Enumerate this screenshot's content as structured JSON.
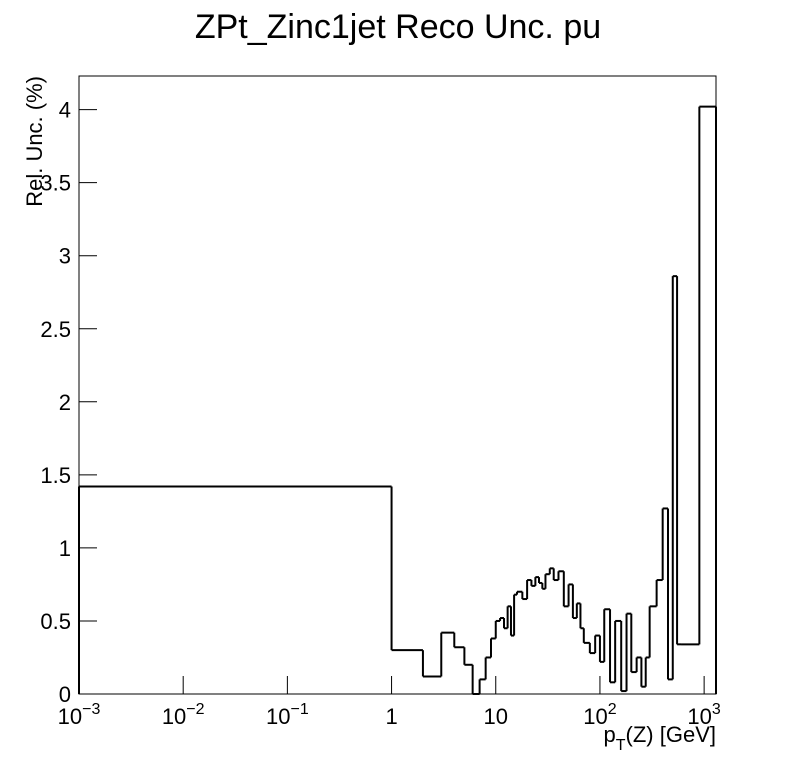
{
  "chart_data": {
    "type": "histogram",
    "title": "ZPt_Zinc1jet Reco Unc. pu",
    "xlabel": "p",
    "xlabel_subscript": "T",
    "xlabel_rest": "(Z) [GeV]",
    "ylabel": "Rel. Unc. (%)",
    "xscale": "log",
    "color": "#000000",
    "bins": [
      0.001,
      1,
      2,
      3,
      4,
      5,
      6,
      7,
      8,
      9,
      10,
      11,
      12,
      13,
      14,
      15,
      16,
      18,
      20,
      22,
      24,
      26,
      28,
      30,
      33,
      36,
      40,
      45,
      50,
      55,
      60,
      65,
      70,
      80,
      90,
      100,
      110,
      125,
      140,
      160,
      180,
      200,
      225,
      250,
      275,
      300,
      350,
      400,
      450,
      500,
      550,
      600,
      900,
      1300
    ],
    "values": [
      1.42,
      0.3,
      0.12,
      0.42,
      0.32,
      0.2,
      0,
      0.1,
      0.25,
      0.38,
      0.5,
      0.52,
      0.45,
      0.6,
      0.4,
      0.68,
      0.7,
      0.65,
      0.78,
      0.74,
      0.8,
      0.76,
      0.72,
      0.82,
      0.86,
      0.78,
      0.84,
      0.6,
      0.75,
      0.52,
      0.62,
      0.45,
      0.35,
      0.28,
      0.4,
      0.22,
      0.58,
      0.08,
      0.5,
      0.02,
      0.55,
      0.15,
      0.25,
      0.05,
      0.25,
      0.6,
      0.78,
      1.27,
      0.1,
      2.86,
      0.34,
      0.34,
      4.02
    ],
    "xlim": [
      0.001,
      1300
    ],
    "ylim": [
      0,
      4.23
    ],
    "xticks": [
      {
        "value": 0.001,
        "label": "10",
        "exponent": "−3"
      },
      {
        "value": 0.01,
        "label": "10",
        "exponent": "−2"
      },
      {
        "value": 0.1,
        "label": "10",
        "exponent": "−1"
      },
      1,
      10,
      {
        "value": 100,
        "label": "10",
        "exponent": "2"
      },
      {
        "value": 1000,
        "label": "10",
        "exponent": "3"
      }
    ],
    "yticks": [
      0,
      0.5,
      1,
      1.5,
      2,
      2.5,
      3,
      3.5,
      4
    ]
  }
}
